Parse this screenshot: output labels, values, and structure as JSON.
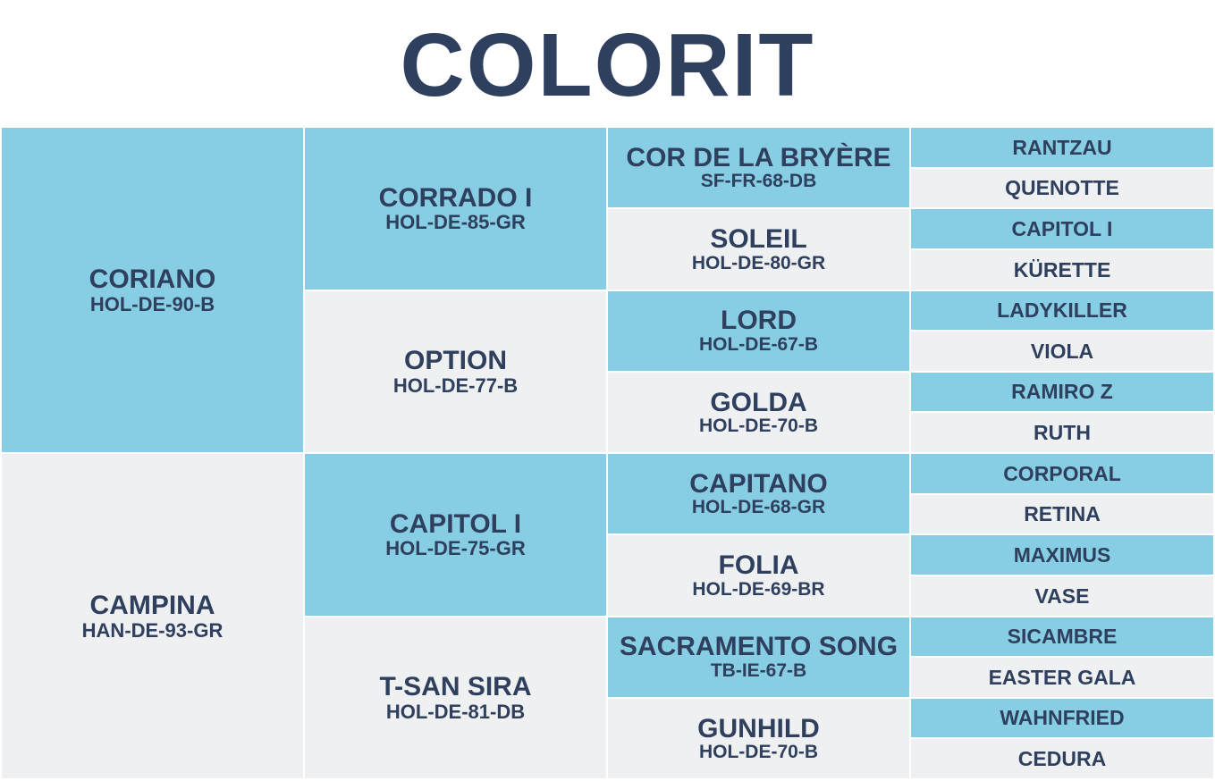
{
  "title": "COLORIT",
  "gen1": [
    {
      "name": "CORIANO",
      "code": "HOL-DE-90-B",
      "color": "blue"
    },
    {
      "name": "CAMPINA",
      "code": "HAN-DE-93-GR",
      "color": "grey"
    }
  ],
  "gen2": [
    {
      "name": "CORRADO I",
      "code": "HOL-DE-85-GR",
      "color": "blue"
    },
    {
      "name": "OPTION",
      "code": "HOL-DE-77-B",
      "color": "grey"
    },
    {
      "name": "CAPITOL I",
      "code": "HOL-DE-75-GR",
      "color": "blue"
    },
    {
      "name": "T-SAN SIRA",
      "code": "HOL-DE-81-DB",
      "color": "grey"
    }
  ],
  "gen3": [
    {
      "name": "COR DE LA BRYÈRE",
      "code": "SF-FR-68-DB",
      "color": "blue"
    },
    {
      "name": "SOLEIL",
      "code": "HOL-DE-80-GR",
      "color": "grey"
    },
    {
      "name": "LORD",
      "code": "HOL-DE-67-B",
      "color": "blue"
    },
    {
      "name": "GOLDA",
      "code": "HOL-DE-70-B",
      "color": "grey"
    },
    {
      "name": "CAPITANO",
      "code": "HOL-DE-68-GR",
      "color": "blue"
    },
    {
      "name": "FOLIA",
      "code": "HOL-DE-69-BR",
      "color": "grey"
    },
    {
      "name": "SACRAMENTO SONG",
      "code": "TB-IE-67-B",
      "color": "blue"
    },
    {
      "name": "GUNHILD",
      "code": "HOL-DE-70-B",
      "color": "grey"
    }
  ],
  "gen4": [
    {
      "name": "RANTZAU",
      "color": "blue"
    },
    {
      "name": "QUENOTTE",
      "color": "grey"
    },
    {
      "name": "CAPITOL I",
      "color": "blue"
    },
    {
      "name": "KÜRETTE",
      "color": "grey"
    },
    {
      "name": "LADYKILLER",
      "color": "blue"
    },
    {
      "name": "VIOLA",
      "color": "grey"
    },
    {
      "name": "RAMIRO Z",
      "color": "blue"
    },
    {
      "name": "RUTH",
      "color": "grey"
    },
    {
      "name": "CORPORAL",
      "color": "blue"
    },
    {
      "name": "RETINA",
      "color": "grey"
    },
    {
      "name": "MAXIMUS",
      "color": "blue"
    },
    {
      "name": "VASE",
      "color": "grey"
    },
    {
      "name": "SICAMBRE",
      "color": "blue"
    },
    {
      "name": "EASTER GALA",
      "color": "grey"
    },
    {
      "name": "WAHNFRIED",
      "color": "blue"
    },
    {
      "name": "CEDURA",
      "color": "grey"
    }
  ],
  "colors": {
    "blue": "#87cde3",
    "grey": "#eff0f2",
    "text": "#2f3f5e"
  }
}
